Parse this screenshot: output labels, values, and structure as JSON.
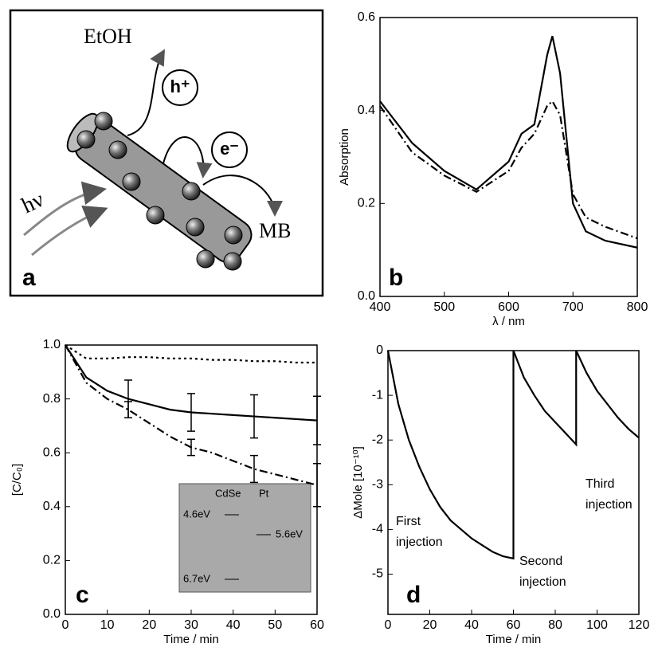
{
  "diagram": {
    "labels": {
      "etoh": "EtOH",
      "hole": "h⁺",
      "electron": "e⁻",
      "light": "hν",
      "mb": "MB",
      "panel": "a"
    }
  },
  "chart_data": [
    {
      "type": "line",
      "panel_label": "b",
      "x_label": "λ / nm",
      "y_label": "Absorption",
      "x": [
        400,
        450,
        500,
        550,
        600,
        620,
        640,
        660,
        668,
        680,
        700,
        720,
        750,
        800
      ],
      "series": [
        {
          "color": "#000000",
          "style": "solid",
          "values": [
            0.42,
            0.33,
            0.27,
            0.23,
            0.29,
            0.35,
            0.37,
            0.52,
            0.56,
            0.48,
            0.2,
            0.14,
            0.12,
            0.105
          ]
        },
        {
          "color": "#000000",
          "style": "dashdot",
          "values": [
            0.41,
            0.31,
            0.26,
            0.225,
            0.27,
            0.32,
            0.35,
            0.41,
            0.42,
            0.39,
            0.22,
            0.17,
            0.15,
            0.125
          ]
        }
      ],
      "xlim": [
        400,
        800
      ],
      "xticks": [
        400,
        500,
        600,
        700,
        800
      ],
      "ylim": [
        0,
        0.6
      ],
      "yticks": [
        {
          "value": 0,
          "label": "0.0"
        },
        0.2,
        0.4,
        0.6
      ]
    },
    {
      "type": "line",
      "panel_label": "c",
      "x_label": "Time / min",
      "y_label": "[C/C₀]",
      "x": [
        0,
        5,
        10,
        15,
        20,
        25,
        30,
        35,
        40,
        45,
        50,
        55,
        60
      ],
      "series": [
        {
          "color": "#000000",
          "style": "dotted",
          "values": [
            1.0,
            0.95,
            0.95,
            0.955,
            0.955,
            0.95,
            0.95,
            0.945,
            0.945,
            0.94,
            0.94,
            0.935,
            0.935
          ]
        },
        {
          "color": "#000000",
          "style": "solid",
          "values": [
            1.0,
            0.88,
            0.83,
            0.8,
            0.78,
            0.76,
            0.75,
            0.745,
            0.74,
            0.735,
            0.73,
            0.725,
            0.72
          ],
          "errors": [
            null,
            null,
            null,
            0.07,
            null,
            null,
            0.07,
            null,
            null,
            0.08,
            null,
            null,
            0.09
          ]
        },
        {
          "color": "#000000",
          "style": "dashdot",
          "values": [
            1.0,
            0.86,
            0.8,
            0.76,
            0.71,
            0.66,
            0.62,
            0.6,
            0.57,
            0.54,
            0.52,
            0.5,
            0.48
          ],
          "errors": [
            null,
            null,
            null,
            0.03,
            null,
            null,
            0.03,
            null,
            null,
            0.05,
            null,
            null,
            0.08
          ]
        }
      ],
      "xlim": [
        0,
        60
      ],
      "xticks": [
        0,
        10,
        20,
        30,
        40,
        50,
        60
      ],
      "ylim": [
        0,
        1
      ],
      "yticks": [
        {
          "value": 0,
          "label": "0.0"
        },
        0.2,
        0.4,
        0.6,
        0.8,
        {
          "value": 1,
          "label": "1.0"
        }
      ],
      "inset": {
        "cdse": "CdSe",
        "pt": "Pt",
        "level1": "4.6eV",
        "level2": "5.6eV",
        "level3": "6.7eV"
      }
    },
    {
      "type": "line",
      "panel_label": "d",
      "x_label": "Time / min",
      "y_label": "ΔMole [10⁻¹⁰]",
      "x": [
        0,
        5,
        10,
        15,
        20,
        25,
        30,
        35,
        40,
        45,
        50,
        55,
        60,
        60,
        65,
        70,
        75,
        80,
        85,
        90,
        90,
        95,
        100,
        105,
        110,
        115,
        120
      ],
      "series": [
        {
          "color": "#000000",
          "style": "solid",
          "values": [
            0,
            -1.2,
            -2.0,
            -2.6,
            -3.1,
            -3.5,
            -3.8,
            -4.0,
            -4.2,
            -4.35,
            -4.5,
            -4.6,
            -4.65,
            0,
            -0.6,
            -1.0,
            -1.35,
            -1.6,
            -1.85,
            -2.1,
            0,
            -0.5,
            -0.9,
            -1.2,
            -1.5,
            -1.75,
            -1.95
          ]
        }
      ],
      "xlim": [
        0,
        120
      ],
      "xticks": [
        0,
        20,
        40,
        60,
        80,
        100,
        120
      ],
      "ylim": [
        -5.9,
        0
      ],
      "yticks": [
        -5,
        -4,
        -3,
        -2,
        -1,
        0
      ],
      "annotations": [
        {
          "lines": [
            "First",
            "injection"
          ]
        },
        {
          "lines": [
            "Second",
            "injection"
          ]
        },
        {
          "lines": [
            "Third",
            "injection"
          ]
        }
      ]
    }
  ]
}
